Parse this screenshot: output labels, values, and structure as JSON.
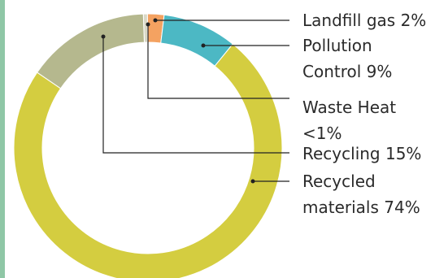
{
  "accent_bar_color": "#8fc7a6",
  "chart_data": {
    "type": "pie",
    "donut": true,
    "title": "",
    "slices": [
      {
        "name": "Waste Heat",
        "value": 0.5,
        "color": "#d9d8c6",
        "label_lines": [
          "Waste Heat",
          "<1%"
        ]
      },
      {
        "name": "Landfill gas",
        "value": 2,
        "color": "#f4a261",
        "label_lines": [
          "Landfill gas 2%"
        ]
      },
      {
        "name": "Pollution Control",
        "value": 9,
        "color": "#4cb8c4",
        "label_lines": [
          "Pollution",
          "Control 9%"
        ]
      },
      {
        "name": "Recycled materials",
        "value": 74,
        "color": "#d4cd40",
        "label_lines": [
          "Recycled",
          "materials 74%"
        ]
      },
      {
        "name": "Recycling",
        "value": 15,
        "color": "#b5b88e",
        "label_lines": [
          "Recycling 15%"
        ]
      }
    ]
  }
}
